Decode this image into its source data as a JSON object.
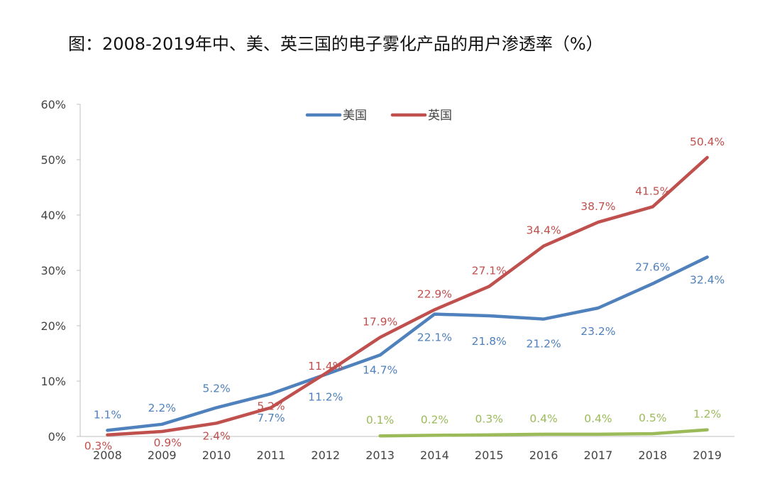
{
  "title": "图：2008-2019年中、美、英三国的电子雾化产品的用户渗透率（%）",
  "chart_data": {
    "type": "line",
    "title": "图：2008-2019年中、美、英三国的电子雾化产品的用户渗透率（%）",
    "xlabel": "",
    "ylabel": "",
    "ylim": [
      0,
      60
    ],
    "y_ticks": [
      "0%",
      "10%",
      "20%",
      "30%",
      "40%",
      "50%",
      "60%"
    ],
    "categories": [
      "2008",
      "2009",
      "2010",
      "2011",
      "2012",
      "2013",
      "2014",
      "2015",
      "2016",
      "2017",
      "2018",
      "2019"
    ],
    "legend_position": "top-center",
    "grid": false,
    "series": [
      {
        "name": "美国",
        "color": "#4F81BD",
        "values": [
          1.1,
          2.2,
          5.2,
          7.7,
          11.2,
          14.7,
          22.1,
          21.8,
          21.2,
          23.2,
          27.6,
          32.4
        ],
        "labels": [
          "1.1%",
          "2.2%",
          "5.2%",
          "7.7%",
          "11.2%",
          "14.7%",
          "22.1%",
          "21.8%",
          "21.2%",
          "23.2%",
          "27.6%",
          "32.4%"
        ]
      },
      {
        "name": "英国",
        "color": "#C0504D",
        "values": [
          0.3,
          0.9,
          2.4,
          5.2,
          11.4,
          17.9,
          22.9,
          27.1,
          34.4,
          38.7,
          41.5,
          50.4
        ],
        "labels": [
          "0.3%",
          "0.9%",
          "2.4%",
          "5.2%",
          "11.4%",
          "17.9%",
          "22.9%",
          "27.1%",
          "34.4%",
          "38.7%",
          "41.5%",
          "50.4%"
        ]
      },
      {
        "color": "#9BBB59",
        "values": [
          null,
          null,
          null,
          null,
          null,
          0.1,
          0.2,
          0.3,
          0.4,
          0.4,
          0.5,
          1.2
        ],
        "labels": [
          "",
          "",
          "",
          "",
          "",
          "0.1%",
          "0.2%",
          "0.3%",
          "0.4%",
          "0.4%",
          "0.5%",
          "1.2%"
        ]
      }
    ]
  }
}
